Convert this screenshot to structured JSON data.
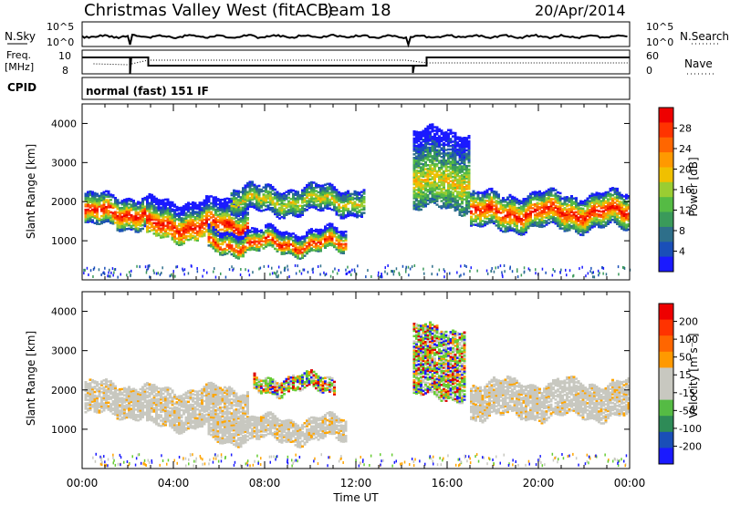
{
  "header": {
    "title": "Christmas Valley West (fitACF)",
    "beam": "Beam 18",
    "date": "20/Apr/2014"
  },
  "params": {
    "nsky_label": "N.Sky",
    "nsky_ticks": [
      "10^5",
      "10^0"
    ],
    "nsearch_label": "N.Search",
    "nsearch_ticks": [
      "10^5",
      "10^0"
    ],
    "freq_label_1": "Freq.",
    "freq_label_2": "[MHz]",
    "freq_ticks": [
      "10",
      "8"
    ],
    "nave_label": "Nave",
    "nave_ticks": [
      "60",
      "0"
    ],
    "cpid_label": "CPID",
    "cpid_value": "normal (fast) 151 IF"
  },
  "chart_data": [
    {
      "type": "heatmap",
      "title": "",
      "xlabel": "",
      "ylabel": "Slant Range [km]",
      "xlim": [
        0,
        24
      ],
      "ylim": [
        0,
        4500
      ],
      "yticks": [
        "1000",
        "2000",
        "3000",
        "4000"
      ],
      "colorbar": {
        "label": "Power [dB]",
        "ticks": [
          "28",
          "24",
          "20",
          "16",
          "12",
          "8",
          "4"
        ],
        "colors": [
          "#1a1aff",
          "#1a4fb8",
          "#2e6f8a",
          "#3a9a5a",
          "#55bb44",
          "#9acd32",
          "#f0c000",
          "#ff9900",
          "#ff6600",
          "#ff3300",
          "#ee0000"
        ]
      },
      "bands": [
        {
          "x": [
            0.1,
            2.8
          ],
          "ylow": 1350,
          "yhigh": 2150,
          "core": 1700,
          "level": "high"
        },
        {
          "x": [
            2.8,
            7.2
          ],
          "ylow": 1050,
          "yhigh": 2000,
          "core": 1350,
          "level": "high"
        },
        {
          "x": [
            5.5,
            11.5
          ],
          "ylow": 700,
          "yhigh": 1250,
          "core": 900,
          "level": "high"
        },
        {
          "x": [
            6.5,
            12.3
          ],
          "ylow": 1700,
          "yhigh": 2350,
          "core": 2000,
          "level": "mid"
        },
        {
          "x": [
            14.5,
            17.0
          ],
          "ylow": 1800,
          "yhigh": 3800,
          "core": 2500,
          "level": "mid"
        },
        {
          "x": [
            17.0,
            24.0
          ],
          "ylow": 1300,
          "yhigh": 2200,
          "core": 1700,
          "level": "high"
        }
      ]
    },
    {
      "type": "heatmap",
      "title": "",
      "xlabel": "Time UT",
      "ylabel": "Slant Range [km]",
      "xlim": [
        0,
        24
      ],
      "ylim": [
        0,
        4500
      ],
      "xticks": [
        "00:00",
        "04:00",
        "08:00",
        "12:00",
        "16:00",
        "20:00",
        "00:00"
      ],
      "yticks": [
        "1000",
        "2000",
        "3000",
        "4000"
      ],
      "colorbar": {
        "label": "Velocity [m s⁻¹]",
        "ticks": [
          "200",
          "100",
          "50",
          "15",
          "-15",
          "-50",
          "-100",
          "-200"
        ],
        "colors": [
          "#1a1aff",
          "#1a4fb8",
          "#2e8b57",
          "#55bb44",
          "#c8c8c0",
          "#c8c8c0",
          "#ff9900",
          "#ff6600",
          "#ff3300",
          "#ee0000"
        ]
      },
      "bands": [
        {
          "x": [
            0.1,
            2.8
          ],
          "ylow": 1350,
          "yhigh": 2150,
          "kind": "ground"
        },
        {
          "x": [
            2.8,
            7.2
          ],
          "ylow": 1050,
          "yhigh": 2000,
          "kind": "ground"
        },
        {
          "x": [
            5.5,
            11.5
          ],
          "ylow": 700,
          "yhigh": 1250,
          "kind": "ground"
        },
        {
          "x": [
            17.0,
            24.0
          ],
          "ylow": 1300,
          "yhigh": 2200,
          "kind": "ground"
        },
        {
          "x": [
            7.5,
            11.0
          ],
          "ylow": 1950,
          "yhigh": 2350,
          "kind": "mixed"
        },
        {
          "x": [
            14.5,
            16.8
          ],
          "ylow": 1800,
          "yhigh": 3600,
          "kind": "mixed"
        }
      ]
    }
  ]
}
